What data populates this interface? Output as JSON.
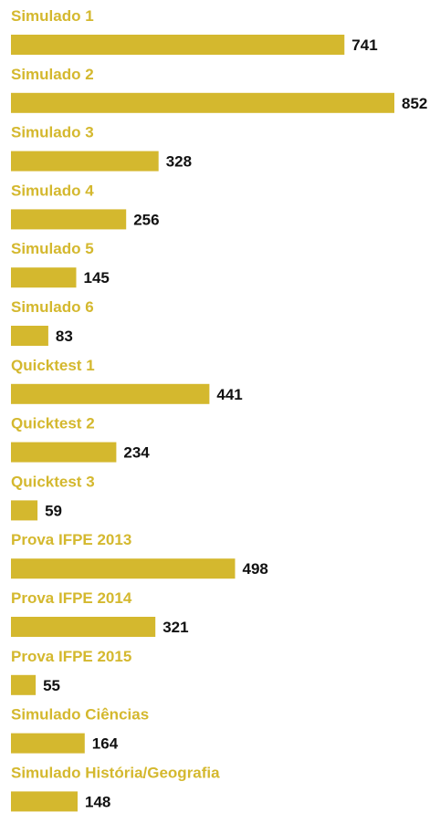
{
  "chart_data": {
    "type": "bar",
    "orientation": "horizontal",
    "title": "",
    "xlabel": "",
    "ylabel": "",
    "grid": false,
    "legend": "none",
    "xlim": [
      0,
      852
    ],
    "categories": [
      "Simulado 1",
      "Simulado 2",
      "Simulado 3",
      "Simulado 4",
      "Simulado 5",
      "Simulado 6",
      "Quicktest 1",
      "Quicktest 2",
      "Quicktest 3",
      "Prova IFPE 2013",
      "Prova IFPE 2014",
      "Prova IFPE 2015",
      "Simulado Ciências",
      "Simulado História/Geografia"
    ],
    "values": [
      741,
      852,
      328,
      256,
      145,
      83,
      441,
      234,
      59,
      498,
      321,
      55,
      164,
      148
    ],
    "colors": {
      "bar": "#d4b82e",
      "category_label": "#d4b82e",
      "value_label": "#111111"
    }
  }
}
